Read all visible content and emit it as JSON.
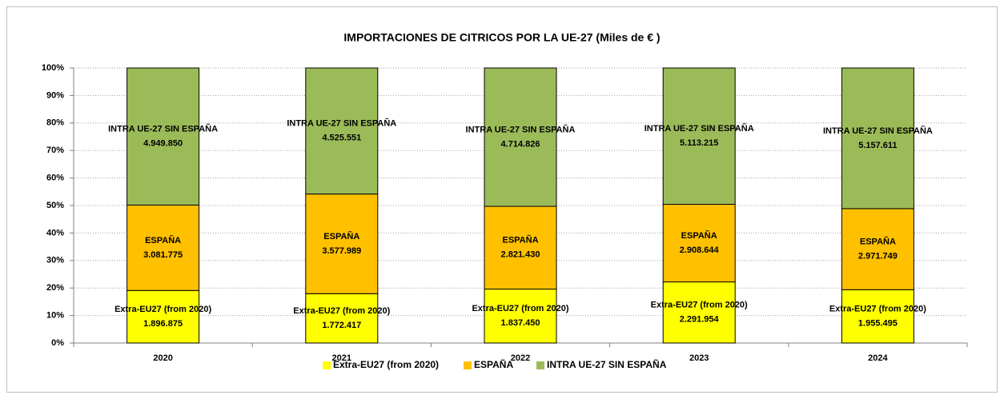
{
  "chart_data": {
    "type": "bar",
    "stacked": "percent",
    "title": "IMPORTACIONES DE CITRICOS POR LA UE-27 (Miles de € )",
    "categories": [
      "2020",
      "2021",
      "2022",
      "2023",
      "2024"
    ],
    "series": [
      {
        "name": "Extra-EU27 (from 2020)",
        "color": "#ffff00",
        "values": [
          1896875,
          1772417,
          1837450,
          2291954,
          1955495
        ],
        "value_labels": [
          "1.896.875",
          "1.772.417",
          "1.837.450",
          "2.291.954",
          "1.955.495"
        ]
      },
      {
        "name": "ESPAÑA",
        "color": "#ffc000",
        "values": [
          3081775,
          3577989,
          2821430,
          2908644,
          2971749
        ],
        "value_labels": [
          "3.081.775",
          "3.577.989",
          "2.821.430",
          "2.908.644",
          "2.971.749"
        ]
      },
      {
        "name": "INTRA UE-27 SIN ESPAÑA",
        "color": "#9bbb59",
        "values": [
          4949850,
          4525551,
          4714826,
          5113215,
          5157611
        ],
        "value_labels": [
          "4.949.850",
          "4.525.551",
          "4.714.826",
          "5.113.215",
          "5.157.611"
        ]
      }
    ],
    "ylim": [
      0,
      100
    ],
    "yticks": [
      {
        "value": 0,
        "label": "0%"
      },
      {
        "value": 10,
        "label": "10%"
      },
      {
        "value": 20,
        "label": "20%"
      },
      {
        "value": 30,
        "label": "30%"
      },
      {
        "value": 40,
        "label": "40%"
      },
      {
        "value": 50,
        "label": "50%"
      },
      {
        "value": 60,
        "label": "60%"
      },
      {
        "value": 70,
        "label": "70%"
      },
      {
        "value": 80,
        "label": "80%"
      },
      {
        "value": 90,
        "label": "90%"
      },
      {
        "value": 100,
        "label": "100%"
      }
    ],
    "grid": true,
    "legend": "bottom"
  }
}
